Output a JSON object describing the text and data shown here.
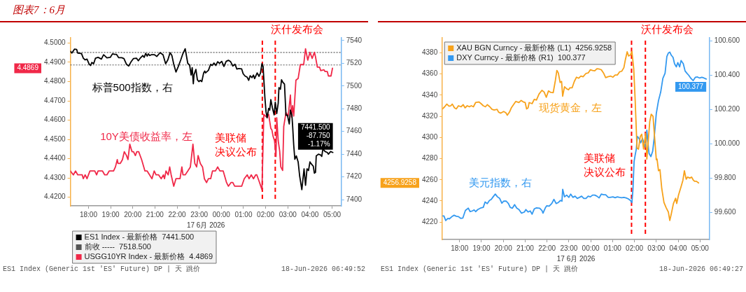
{
  "chart_data": [
    {
      "type": "line",
      "title": "图表7：6月",
      "xlabel": "17 6月 2026",
      "marker": "none",
      "legend": "bottom left",
      "xlim": [
        "2026-06-17T17:11",
        "2026-06-18T05:25"
      ],
      "xticks": [
        {
          "value": "2026-06-17T18:00",
          "label": "18:00"
        },
        {
          "value": "2026-06-17T19:00",
          "label": "19:00"
        },
        {
          "value": "2026-06-17T20:00",
          "label": "20:00"
        },
        {
          "value": "2026-06-17T21:00",
          "label": "21:00"
        },
        {
          "value": "2026-06-17T22:00",
          "label": "22:00"
        },
        {
          "value": "2026-06-17T23:00",
          "label": "23:00"
        },
        {
          "value": "2026-06-18T00:00",
          "label": "00:00"
        },
        {
          "value": "2026-06-18T01:00",
          "label": "01:00"
        },
        {
          "value": "2026-06-18T02:00",
          "label": "02:00"
        },
        {
          "value": "2026-06-18T03:00",
          "label": "03:00"
        },
        {
          "value": "2026-06-18T04:00",
          "label": "04:00"
        },
        {
          "value": "2026-06-18T05:00",
          "label": "05:00"
        }
      ],
      "ylim": [
        4.4155,
        4.5027
      ],
      "yticks": [
        {
          "value": 4.42,
          "label": "4.4200"
        },
        {
          "value": 4.43,
          "label": "4.4300"
        },
        {
          "value": 4.44,
          "label": "4.4400"
        },
        {
          "value": 4.45,
          "label": "4.4500"
        },
        {
          "value": 4.46,
          "label": "4.4600"
        },
        {
          "value": 4.47,
          "label": "4.4700"
        },
        {
          "value": 4.48,
          "label": "4.4800"
        },
        {
          "value": 4.49,
          "label": "4.4900"
        },
        {
          "value": 4.5,
          "label": "4.5000"
        }
      ],
      "y2lim": [
        7394.5,
        7542.4
      ],
      "y2ticks": [
        7400,
        7420,
        7440,
        7460,
        7480,
        7500,
        7520,
        7540
      ],
      "series": [
        {
          "name": "ES1 Index - 最新价格  7441.500",
          "color": "#000000",
          "axis": "y2",
          "x": [
            "2026-06-17T17:11",
            "2026-06-17T17:15",
            "2026-06-17T17:22",
            "2026-06-17T17:28",
            "2026-06-17T17:31",
            "2026-06-17T17:37",
            "2026-06-17T17:41",
            "2026-06-17T17:46",
            "2026-06-17T17:51",
            "2026-06-17T17:56",
            "2026-06-17T18:02",
            "2026-06-17T18:06",
            "2026-06-17T18:09",
            "2026-06-17T18:14",
            "2026-06-17T18:19",
            "2026-06-17T18:26",
            "2026-06-17T18:35",
            "2026-06-17T18:41",
            "2026-06-17T18:50",
            "2026-06-17T18:59",
            "2026-06-17T19:05",
            "2026-06-17T19:11",
            "2026-06-17T19:16",
            "2026-06-17T19:22",
            "2026-06-17T19:30",
            "2026-06-17T19:36",
            "2026-06-17T19:43",
            "2026-06-17T19:49",
            "2026-06-17T19:55",
            "2026-06-17T20:02",
            "2026-06-17T20:10",
            "2026-06-17T20:15",
            "2026-06-17T20:21",
            "2026-06-17T20:27",
            "2026-06-17T20:31",
            "2026-06-17T20:35",
            "2026-06-17T20:39",
            "2026-06-17T20:42",
            "2026-06-17T20:46",
            "2026-06-17T20:50",
            "2026-06-17T20:59",
            "2026-06-17T21:05",
            "2026-06-17T21:14",
            "2026-06-17T21:22",
            "2026-06-17T21:29",
            "2026-06-17T21:35",
            "2026-06-17T21:41",
            "2026-06-17T21:46",
            "2026-06-17T21:51",
            "2026-06-17T21:57",
            "2026-06-17T22:03",
            "2026-06-17T22:10",
            "2026-06-17T22:15",
            "2026-06-17T22:22",
            "2026-06-17T22:29",
            "2026-06-17T22:34",
            "2026-06-17T22:38",
            "2026-06-17T22:41",
            "2026-06-17T22:44",
            "2026-06-17T22:46",
            "2026-06-17T22:51",
            "2026-06-17T22:55",
            "2026-06-17T22:59",
            "2026-06-17T23:03",
            "2026-06-17T23:07",
            "2026-06-17T23:12",
            "2026-06-17T23:15",
            "2026-06-17T23:17",
            "2026-06-17T23:25",
            "2026-06-17T23:31",
            "2026-06-17T23:35",
            "2026-06-17T23:40",
            "2026-06-17T23:45",
            "2026-06-17T23:50",
            "2026-06-17T23:55",
            "2026-06-18T00:01",
            "2026-06-18T00:07",
            "2026-06-18T00:13",
            "2026-06-18T00:19",
            "2026-06-18T00:25",
            "2026-06-18T00:31",
            "2026-06-18T00:37",
            "2026-06-18T00:42",
            "2026-06-18T00:47",
            "2026-06-18T00:55",
            "2026-06-18T00:59",
            "2026-06-18T01:04",
            "2026-06-18T01:10",
            "2026-06-18T01:14",
            "2026-06-18T01:18",
            "2026-06-18T01:23",
            "2026-06-18T01:27",
            "2026-06-18T01:30",
            "2026-06-18T01:37",
            "2026-06-18T01:42",
            "2026-06-18T01:46",
            "2026-06-18T01:50",
            "2026-06-18T01:53",
            "2026-06-18T01:58",
            "2026-06-18T02:01",
            "2026-06-18T02:04",
            "2026-06-18T02:08",
            "2026-06-18T02:11",
            "2026-06-18T02:14",
            "2026-06-18T02:18",
            "2026-06-18T02:23",
            "2026-06-18T02:26",
            "2026-06-18T02:30",
            "2026-06-18T02:34",
            "2026-06-18T02:36",
            "2026-06-18T02:40",
            "2026-06-18T02:43",
            "2026-06-18T02:46",
            "2026-06-18T02:51",
            "2026-06-18T02:55",
            "2026-06-18T02:59",
            "2026-06-18T03:04",
            "2026-06-18T03:07",
            "2026-06-18T03:11",
            "2026-06-18T03:13",
            "2026-06-18T03:16",
            "2026-06-18T03:19",
            "2026-06-18T03:23",
            "2026-06-18T03:28",
            "2026-06-18T03:32",
            "2026-06-18T03:38",
            "2026-06-18T03:44",
            "2026-06-18T03:48",
            "2026-06-18T03:52",
            "2026-06-18T03:56",
            "2026-06-18T04:00",
            "2026-06-18T04:03",
            "2026-06-18T04:09",
            "2026-06-18T04:12",
            "2026-06-18T04:15",
            "2026-06-18T04:17",
            "2026-06-18T04:23",
            "2026-06-18T04:29",
            "2026-06-18T04:32",
            "2026-06-18T04:35",
            "2026-06-18T04:41",
            "2026-06-18T04:47",
            "2026-06-18T04:50",
            "2026-06-18T04:56",
            "2026-06-18T05:02"
          ],
          "values": [
            7530.6,
            7529.0,
            7532.4,
            7532.1,
            7529.0,
            7528.7,
            7528.6,
            7524.5,
            7523.0,
            7523.7,
            7519.1,
            7518.1,
            7520.7,
            7519.6,
            7524.5,
            7525.2,
            7523.7,
            7527.5,
            7524.8,
            7525.2,
            7528.3,
            7527.8,
            7527.8,
            7524.9,
            7524.9,
            7524.2,
            7519.1,
            7517.6,
            7521.1,
            7524.2,
            7524.5,
            7522.2,
            7524.8,
            7526.8,
            7525.2,
            7528.7,
            7526.3,
            7528.3,
            7526.8,
            7527.5,
            7527.5,
            7526.0,
            7529.3,
            7527.5,
            7519.6,
            7523.0,
            7529.3,
            7526.8,
            7519.1,
            7512.3,
            7516.9,
            7523.0,
            7527.8,
            7532.8,
            7519.9,
            7518.4,
            7509.6,
            7516.1,
            7502.0,
            7510.0,
            7514.6,
            7505.5,
            7503.9,
            7505.0,
            7503.9,
            7511.5,
            7513.1,
            7511.5,
            7513.8,
            7519.1,
            7518.1,
            7520.2,
            7518.1,
            7521.4,
            7519.9,
            7521.7,
            7517.2,
            7521.7,
            7522.6,
            7521.4,
            7517.6,
            7519.1,
            7514.9,
            7515.3,
            7515.0,
            7510.8,
            7508.8,
            7507.7,
            7505.0,
            7509.0,
            7507.4,
            7509.6,
            7506.5,
            7511.5,
            7508.5,
            7511.5,
            7519.6,
            7517.2,
            7489.5,
            7477.3,
            7472.0,
            7480.3,
            7478.8,
            7488.0,
            7481.1,
            7474.6,
            7485.7,
            7475.8,
            7484.9,
            7498.6,
            7497.1,
            7505.5,
            7503.5,
            7501.6,
            7474.3,
            7474.3,
            7466.6,
            7478.8,
            7474.3,
            7465.1,
            7448.0,
            7435.5,
            7438.5,
            7433.2,
            7421.0,
            7408.8,
            7427.1,
            7412.6,
            7427.1,
            7425.6,
            7433.2,
            7431.7,
            7429.4,
            7423.3,
            7424.0,
            7438.5,
            7440.0,
            7439.3,
            7438.0,
            7444.6,
            7442.3,
            7441.5,
            7440.0,
            7442.3,
            7441.5
          ],
          "value_labels": [
            null,
            null,
            null,
            null,
            null,
            null,
            null,
            null,
            null,
            null,
            null,
            null,
            null,
            null,
            null,
            null,
            null,
            null,
            null,
            null,
            null,
            null,
            null,
            null,
            null,
            null,
            null,
            null,
            null,
            null,
            null,
            null,
            null,
            null,
            null,
            null,
            null,
            null,
            null,
            null,
            null,
            null,
            null,
            null,
            null,
            null,
            null,
            null,
            null,
            null,
            null,
            null,
            null,
            null,
            null,
            null,
            null,
            null,
            null,
            null,
            null,
            null,
            null,
            null,
            null,
            null,
            null,
            null,
            null,
            null,
            null,
            null,
            null,
            null,
            null,
            null,
            null,
            null,
            null,
            null,
            null,
            null,
            null,
            null,
            null,
            null,
            null,
            null,
            null,
            null,
            null,
            null,
            null,
            null,
            null,
            null,
            null,
            null,
            null,
            null,
            null,
            null,
            null,
            null,
            null,
            null,
            null,
            null,
            null,
            null,
            null,
            null,
            null,
            null,
            null,
            null,
            null,
            null,
            null,
            null,
            null,
            null,
            null,
            null,
            null,
            null,
            null,
            null,
            null,
            null,
            null,
            null,
            null,
            null,
            null,
            null,
            null,
            null,
            null,
            null,
            null,
            null,
            null,
            null,
            "7441.500\n-87.750\n-1.17%"
          ]
        },
        {
          "name": "USGG10YR Index - 最新价格  4.4869",
          "color": "#f02848",
          "x": [
            "2026-06-17T17:11",
            "2026-06-17T17:19",
            "2026-06-17T17:25",
            "2026-06-17T17:31",
            "2026-06-17T17:43",
            "2026-06-17T17:46",
            "2026-06-17T17:51",
            "2026-06-17T17:56",
            "2026-06-17T18:04",
            "2026-06-17T18:17",
            "2026-06-17T18:22",
            "2026-06-17T18:26",
            "2026-06-17T18:38",
            "2026-06-17T18:44",
            "2026-06-17T18:50",
            "2026-06-17T18:56",
            "2026-06-17T19:08",
            "2026-06-17T19:13",
            "2026-06-17T19:18",
            "2026-06-17T19:20",
            "2026-06-17T19:26",
            "2026-06-17T19:32",
            "2026-06-17T19:37",
            "2026-06-17T19:43",
            "2026-06-17T19:47",
            "2026-06-17T19:52",
            "2026-06-17T19:58",
            "2026-06-17T20:02",
            "2026-06-17T20:07",
            "2026-06-17T20:11",
            "2026-06-17T20:16",
            "2026-06-17T20:24",
            "2026-06-17T20:33",
            "2026-06-17T20:39",
            "2026-06-17T20:52",
            "2026-06-17T20:58",
            "2026-06-17T21:03",
            "2026-06-17T21:10",
            "2026-06-17T21:17",
            "2026-06-17T21:23",
            "2026-06-17T21:26",
            "2026-06-17T21:30",
            "2026-06-17T21:36",
            "2026-06-17T21:40",
            "2026-06-17T21:44",
            "2026-06-17T21:51",
            "2026-06-17T21:57",
            "2026-06-17T22:08",
            "2026-06-17T22:13",
            "2026-06-17T22:16",
            "2026-06-17T22:22",
            "2026-06-17T22:29",
            "2026-06-17T22:36",
            "2026-06-17T22:43",
            "2026-06-17T22:48",
            "2026-06-17T22:53",
            "2026-06-17T22:57",
            "2026-06-17T23:03",
            "2026-06-17T23:09",
            "2026-06-17T23:14",
            "2026-06-17T23:20",
            "2026-06-17T23:25",
            "2026-06-17T23:31",
            "2026-06-17T23:36",
            "2026-06-17T23:44",
            "2026-06-17T23:50",
            "2026-06-17T23:56",
            "2026-06-18T00:05",
            "2026-06-18T00:14",
            "2026-06-18T00:19",
            "2026-06-18T00:26",
            "2026-06-18T00:31",
            "2026-06-18T00:36",
            "2026-06-18T00:55",
            "2026-06-18T01:02",
            "2026-06-18T01:10",
            "2026-06-18T01:15",
            "2026-06-18T01:21",
            "2026-06-18T01:27",
            "2026-06-18T01:33",
            "2026-06-18T01:36",
            "2026-06-18T01:42",
            "2026-06-18T01:50",
            "2026-06-18T01:55",
            "2026-06-18T02:02",
            "2026-06-18T02:08",
            "2026-06-18T02:14",
            "2026-06-18T02:17",
            "2026-06-18T02:20",
            "2026-06-18T02:24",
            "2026-06-18T02:28",
            "2026-06-18T02:30",
            "2026-06-18T02:34",
            "2026-06-18T02:38",
            "2026-06-18T02:41",
            "2026-06-18T02:46",
            "2026-06-18T02:49",
            "2026-06-18T02:55",
            "2026-06-18T03:01",
            "2026-06-18T03:07",
            "2026-06-18T03:10",
            "2026-06-18T03:13",
            "2026-06-18T03:16",
            "2026-06-18T03:22",
            "2026-06-18T03:28",
            "2026-06-18T03:34",
            "2026-06-18T03:43",
            "2026-06-18T03:48",
            "2026-06-18T03:54",
            "2026-06-18T04:00",
            "2026-06-18T04:06",
            "2026-06-18T04:12",
            "2026-06-18T04:15",
            "2026-06-18T04:20",
            "2026-06-18T04:26",
            "2026-06-18T04:29",
            "2026-06-18T04:38",
            "2026-06-18T04:41",
            "2026-06-18T04:47",
            "2026-06-18T04:50",
            "2026-06-18T04:57",
            "2026-06-18T05:01"
          ],
          "values": [
            4.4336,
            4.4316,
            4.4336,
            4.4316,
            4.4316,
            4.4296,
            4.4316,
            4.4296,
            4.4336,
            4.4336,
            4.4316,
            4.4336,
            4.4336,
            4.4316,
            4.4316,
            4.4336,
            4.4336,
            4.4357,
            4.4395,
            4.4375,
            4.4375,
            4.4395,
            4.4436,
            4.4416,
            4.4395,
            4.4475,
            4.4436,
            4.4436,
            4.4416,
            4.4436,
            4.4436,
            4.4395,
            4.4336,
            4.4336,
            4.4296,
            4.4336,
            4.4316,
            4.4316,
            4.4296,
            4.4316,
            4.4296,
            4.4336,
            4.4316,
            4.4357,
            4.4316,
            4.4257,
            4.4296,
            4.4296,
            4.4357,
            4.4316,
            4.4316,
            4.4336,
            4.4357,
            4.4475,
            4.4375,
            4.4357,
            4.4416,
            4.4375,
            4.4357,
            4.4296,
            4.4276,
            4.4296,
            4.4296,
            4.4336,
            4.4336,
            4.4357,
            4.4336,
            4.4336,
            4.4276,
            4.4257,
            4.4276,
            4.4276,
            4.4257,
            4.4257,
            4.4296,
            4.4316,
            4.4296,
            4.4316,
            4.4296,
            4.4316,
            4.4316,
            4.4284,
            4.4239,
            4.463,
            4.4616,
            4.463,
            4.4557,
            4.4548,
            4.4517,
            4.4493,
            4.4411,
            4.4612,
            4.4493,
            4.4439,
            4.4357,
            4.4339,
            4.4567,
            4.4639,
            4.4621,
            4.473,
            4.4616,
            4.4675,
            4.4621,
            4.4807,
            4.4816,
            4.4888,
            4.4888,
            4.497,
            4.4911,
            4.4952,
            4.492,
            4.4952,
            4.4929,
            4.4875,
            4.4875,
            4.4857,
            4.4861,
            4.4852,
            4.4852,
            4.4829,
            4.4829,
            4.4869
          ]
        }
      ],
      "ref_lines": [
        {
          "axis": "x",
          "value": "2026-06-18T01:51",
          "label": "美联储决议公布",
          "color": "#ff0000",
          "line_style": "dashed"
        },
        {
          "axis": "x",
          "value": "2026-06-18T02:26",
          "label": "沃什发布会",
          "color": "#ff0000",
          "line_style": "dashed"
        },
        {
          "axis": "y2",
          "value": 7518.5,
          "label": "前收 -----  7518.500",
          "color": "#555555",
          "line_style": "dotted"
        },
        {
          "axis": "y2",
          "value": 7529.5,
          "color": "#333333",
          "line_style": "dotted"
        }
      ],
      "annotations": [
        "标普500指数，右",
        "10Y美债收益率，左",
        "ES1 Index (Generic 1st 'ES' Future) DP | 天 跳价",
        "18-Jun-2026 06:49:52",
        "4.4869"
      ]
    },
    {
      "type": "line",
      "xlabel": "17 6月 2026",
      "marker": "none",
      "legend": "top left",
      "xlim": [
        "2026-06-17T17:13",
        "2026-06-18T05:26"
      ],
      "xticks": [
        {
          "value": "2026-06-17T18:00",
          "label": "18:00"
        },
        {
          "value": "2026-06-17T19:00",
          "label": "19:00"
        },
        {
          "value": "2026-06-17T20:00",
          "label": "20:00"
        },
        {
          "value": "2026-06-17T21:00",
          "label": "21:00"
        },
        {
          "value": "2026-06-17T22:00",
          "label": "22:00"
        },
        {
          "value": "2026-06-17T23:00",
          "label": "23:00"
        },
        {
          "value": "2026-06-18T00:00",
          "label": "00:00"
        },
        {
          "value": "2026-06-18T01:00",
          "label": "01:00"
        },
        {
          "value": "2026-06-18T02:00",
          "label": "02:00"
        },
        {
          "value": "2026-06-18T03:00",
          "label": "03:00"
        },
        {
          "value": "2026-06-18T04:00",
          "label": "04:00"
        },
        {
          "value": "2026-06-18T05:00",
          "label": "05:00"
        }
      ],
      "ylim": [
        4203.6,
        4394.2
      ],
      "yticks": [
        4220,
        4240,
        4260,
        4280,
        4300,
        4320,
        4340,
        4360,
        4380
      ],
      "y2lim": [
        99.444,
        100.617
      ],
      "y2ticks": [
        {
          "value": 99.6,
          "label": "99.600"
        },
        {
          "value": 99.8,
          "label": "99.800"
        },
        {
          "value": 100,
          "label": "100.000"
        },
        {
          "value": 100.2,
          "label": "100.200"
        },
        {
          "value": 100.4,
          "label": "100.400"
        },
        {
          "value": 100.6,
          "label": "100.600"
        }
      ],
      "series": [
        {
          "name": "XAU BGN Curncy - 最新价格 (L1)  4256.9258",
          "color": "#f7a21b",
          "x": [
            "2026-06-17T17:13",
            "2026-06-17T17:19",
            "2026-06-17T17:25",
            "2026-06-17T17:31",
            "2026-06-17T17:36",
            "2026-06-17T17:40",
            "2026-06-17T17:46",
            "2026-06-17T17:51",
            "2026-06-17T17:57",
            "2026-06-17T18:04",
            "2026-06-17T18:10",
            "2026-06-17T18:15",
            "2026-06-17T18:21",
            "2026-06-17T18:27",
            "2026-06-17T18:32",
            "2026-06-17T18:38",
            "2026-06-17T18:44",
            "2026-06-17T18:53",
            "2026-06-17T18:59",
            "2026-06-17T19:05",
            "2026-06-17T19:11",
            "2026-06-17T19:16",
            "2026-06-17T19:23",
            "2026-06-17T19:29",
            "2026-06-17T19:35",
            "2026-06-17T19:43",
            "2026-06-17T19:47",
            "2026-06-17T19:53",
            "2026-06-17T20:01",
            "2026-06-17T20:07",
            "2026-06-17T20:11",
            "2026-06-17T20:17",
            "2026-06-17T20:22",
            "2026-06-17T20:28",
            "2026-06-17T20:34",
            "2026-06-17T20:43",
            "2026-06-17T20:49",
            "2026-06-17T20:55",
            "2026-06-17T21:00",
            "2026-06-17T21:04",
            "2026-06-17T21:08",
            "2026-06-17T21:11",
            "2026-06-17T21:19",
            "2026-06-17T21:25",
            "2026-06-17T21:31",
            "2026-06-17T21:38",
            "2026-06-17T21:46",
            "2026-06-17T21:52",
            "2026-06-17T21:58",
            "2026-06-17T22:04",
            "2026-06-17T22:10",
            "2026-06-17T22:17",
            "2026-06-17T22:23",
            "2026-06-17T22:27",
            "2026-06-17T22:31",
            "2026-06-17T22:36",
            "2026-06-17T22:40",
            "2026-06-17T22:43",
            "2026-06-17T22:48",
            "2026-06-17T22:54",
            "2026-06-17T22:59",
            "2026-06-17T23:03",
            "2026-06-17T23:09",
            "2026-06-17T23:15",
            "2026-06-17T23:21",
            "2026-06-17T23:27",
            "2026-06-17T23:33",
            "2026-06-17T23:39",
            "2026-06-17T23:47",
            "2026-06-17T23:53",
            "2026-06-17T23:59",
            "2026-06-18T00:05",
            "2026-06-18T00:11",
            "2026-06-18T00:17",
            "2026-06-18T00:24",
            "2026-06-18T00:29",
            "2026-06-18T00:35",
            "2026-06-18T00:41",
            "2026-06-18T00:47",
            "2026-06-18T00:55",
            "2026-06-18T01:01",
            "2026-06-18T01:07",
            "2026-06-18T01:13",
            "2026-06-18T01:19",
            "2026-06-18T01:25",
            "2026-06-18T01:31",
            "2026-06-18T01:35",
            "2026-06-18T01:40",
            "2026-06-18T01:44",
            "2026-06-18T01:49",
            "2026-06-18T01:53",
            "2026-06-18T01:58",
            "2026-06-18T02:02",
            "2026-06-18T02:07",
            "2026-06-18T02:11",
            "2026-06-18T02:16",
            "2026-06-18T02:20",
            "2026-06-18T02:25",
            "2026-06-18T02:28",
            "2026-06-18T02:31",
            "2026-06-18T02:34",
            "2026-06-18T02:42",
            "2026-06-18T02:46",
            "2026-06-18T02:51",
            "2026-06-18T02:56",
            "2026-06-18T03:00",
            "2026-06-18T03:02",
            "2026-06-18T03:06",
            "2026-06-18T03:10",
            "2026-06-18T03:15",
            "2026-06-18T03:21",
            "2026-06-18T03:27",
            "2026-06-18T03:33",
            "2026-06-18T03:37",
            "2026-06-18T03:41",
            "2026-06-18T03:47",
            "2026-06-18T03:53",
            "2026-06-18T03:56",
            "2026-06-18T04:01",
            "2026-06-18T04:08",
            "2026-06-18T04:13",
            "2026-06-18T04:17",
            "2026-06-18T04:22",
            "2026-06-18T04:26",
            "2026-06-18T04:32",
            "2026-06-18T04:37",
            "2026-06-18T04:41",
            "2026-06-18T04:45",
            "2026-06-18T04:50",
            "2026-06-18T04:56"
          ],
          "values": [
            4327,
            4329,
            4331.6,
            4329.6,
            4330,
            4331.6,
            4328,
            4327,
            4330,
            4329,
            4331,
            4328,
            4330,
            4329,
            4330,
            4329,
            4333,
            4333.6,
            4332,
            4330,
            4329,
            4331,
            4329,
            4326.6,
            4326,
            4326.6,
            4324,
            4323,
            4324.6,
            4323.4,
            4321,
            4324,
            4328,
            4331,
            4334,
            4333,
            4335,
            4333.6,
            4333,
            4327,
            4328,
            4333,
            4332,
            4336,
            4335.4,
            4341,
            4344.6,
            4343,
            4338,
            4344,
            4342.6,
            4342.4,
            4354,
            4363.4,
            4361,
            4352,
            4353,
            4339,
            4348,
            4346,
            4345,
            4347,
            4347,
            4353,
            4357,
            4356,
            4358,
            4357.4,
            4360.6,
            4361,
            4364,
            4363.4,
            4363,
            4365,
            4364.6,
            4364,
            4361,
            4356.6,
            4357.4,
            4358,
            4357,
            4359,
            4359,
            4362,
            4362.6,
            4366,
            4373.4,
            4381,
            4377,
            4378,
            4381.4,
            4365,
            4335,
            4290,
            4289,
            4301,
            4303,
            4289,
            4297,
            4304,
            4279.6,
            4315,
            4322,
            4320,
            4297,
            4279,
            4279.6,
            4268.6,
            4269.6,
            4251.6,
            4238.6,
            4233.6,
            4229.6,
            4221.6,
            4227.6,
            4237.6,
            4242.6,
            4237.6,
            4245.6,
            4253.6,
            4259.6,
            4268.6,
            4260.6,
            4262.6,
            4261.6,
            4262.6,
            4260,
            4258.6,
            4258.6,
            4257
          ]
        },
        {
          "name": "DXY Curncy - 最新价格 (R1)  100.377",
          "color": "#3399f0",
          "axis": "y2",
          "x": [
            "2026-06-17T17:13",
            "2026-06-17T17:17",
            "2026-06-17T17:22",
            "2026-06-17T17:28",
            "2026-06-17T17:32",
            "2026-06-17T17:39",
            "2026-06-17T17:45",
            "2026-06-17T17:51",
            "2026-06-17T17:57",
            "2026-06-17T18:03",
            "2026-06-17T18:09",
            "2026-06-17T18:16",
            "2026-06-17T18:24",
            "2026-06-17T18:29",
            "2026-06-17T18:35",
            "2026-06-17T18:40",
            "2026-06-17T18:44",
            "2026-06-17T18:50",
            "2026-06-17T18:59",
            "2026-06-17T19:05",
            "2026-06-17T19:10",
            "2026-06-17T19:16",
            "2026-06-17T19:22",
            "2026-06-17T19:27",
            "2026-06-17T19:32",
            "2026-06-17T19:38",
            "2026-06-17T19:44",
            "2026-06-17T19:50",
            "2026-06-17T19:56",
            "2026-06-17T20:01",
            "2026-06-17T20:08",
            "2026-06-17T20:14",
            "2026-06-17T20:19",
            "2026-06-17T20:25",
            "2026-06-17T20:31",
            "2026-06-17T20:37",
            "2026-06-17T20:43",
            "2026-06-17T20:50",
            "2026-06-17T20:58",
            "2026-06-17T21:02",
            "2026-06-17T21:08",
            "2026-06-17T21:14",
            "2026-06-17T21:19",
            "2026-06-17T21:25",
            "2026-06-17T21:31",
            "2026-06-17T21:40",
            "2026-06-17T21:46",
            "2026-06-17T21:49",
            "2026-06-17T21:55",
            "2026-06-17T21:59",
            "2026-06-17T22:06",
            "2026-06-17T22:13",
            "2026-06-17T22:19",
            "2026-06-17T22:25",
            "2026-06-17T22:31",
            "2026-06-17T22:37",
            "2026-06-17T22:41",
            "2026-06-17T22:43",
            "2026-06-17T22:48",
            "2026-06-17T22:54",
            "2026-06-17T23:00",
            "2026-06-17T23:05",
            "2026-06-17T23:11",
            "2026-06-17T23:17",
            "2026-06-17T23:23",
            "2026-06-17T23:29",
            "2026-06-17T23:35",
            "2026-06-17T23:41",
            "2026-06-17T23:47",
            "2026-06-17T23:53",
            "2026-06-17T23:59",
            "2026-06-18T00:05",
            "2026-06-18T00:11",
            "2026-06-18T00:17",
            "2026-06-18T00:23",
            "2026-06-18T00:29",
            "2026-06-18T00:35",
            "2026-06-18T00:41",
            "2026-06-18T00:48",
            "2026-06-18T00:53",
            "2026-06-18T01:01",
            "2026-06-18T01:07",
            "2026-06-18T01:13",
            "2026-06-18T01:19",
            "2026-06-18T01:25",
            "2026-06-18T01:31",
            "2026-06-18T01:37",
            "2026-06-18T01:43",
            "2026-06-18T01:49",
            "2026-06-18T01:53",
            "2026-06-18T01:56",
            "2026-06-18T01:59",
            "2026-06-18T02:02",
            "2026-06-18T02:05",
            "2026-06-18T02:08",
            "2026-06-18T02:13",
            "2026-06-18T02:17",
            "2026-06-18T02:22",
            "2026-06-18T02:26",
            "2026-06-18T02:31",
            "2026-06-18T02:34",
            "2026-06-18T02:37",
            "2026-06-18T02:40",
            "2026-06-18T02:45",
            "2026-06-18T02:50",
            "2026-06-18T02:54",
            "2026-06-18T03:00",
            "2026-06-18T03:06",
            "2026-06-18T03:12",
            "2026-06-18T03:18",
            "2026-06-18T03:24",
            "2026-06-18T03:29",
            "2026-06-18T03:33",
            "2026-06-18T03:37",
            "2026-06-18T03:41",
            "2026-06-18T03:46",
            "2026-06-18T03:50",
            "2026-06-18T03:55",
            "2026-06-18T03:59",
            "2026-06-18T04:04",
            "2026-06-18T04:08",
            "2026-06-18T04:14",
            "2026-06-18T04:19",
            "2026-06-18T04:24",
            "2026-06-18T04:29",
            "2026-06-18T04:35",
            "2026-06-18T04:41",
            "2026-06-18T04:47",
            "2026-06-18T04:53",
            "2026-06-18T04:59",
            "2026-06-18T05:05",
            "2026-06-18T05:11",
            "2026-06-18T05:17"
          ],
          "values": [
            99.581,
            99.581,
            99.554,
            99.567,
            99.564,
            99.577,
            99.585,
            99.579,
            99.577,
            99.567,
            99.569,
            99.613,
            99.626,
            99.606,
            99.61,
            99.616,
            99.606,
            99.618,
            99.628,
            99.631,
            99.662,
            99.653,
            99.671,
            99.677,
            99.692,
            99.708,
            99.692,
            99.683,
            99.655,
            99.667,
            99.667,
            99.653,
            99.631,
            99.626,
            99.647,
            99.626,
            99.618,
            99.597,
            99.604,
            99.618,
            99.604,
            99.61,
            99.591,
            99.622,
            99.628,
            99.626,
            99.613,
            99.597,
            99.626,
            99.64,
            99.638,
            99.653,
            99.677,
            99.653,
            99.659,
            99.671,
            99.667,
            99.736,
            99.692,
            99.702,
            99.689,
            99.708,
            99.689,
            99.696,
            99.683,
            99.689,
            99.696,
            99.683,
            99.683,
            99.696,
            99.692,
            99.702,
            99.702,
            99.696,
            99.686,
            99.708,
            99.704,
            99.704,
            99.689,
            99.689,
            99.692,
            99.687,
            99.692,
            99.689,
            99.687,
            99.689,
            99.686,
            99.68,
            99.671,
            99.659,
            99.739,
            99.898,
            99.935,
            99.969,
            100.043,
            100.031,
            100.006,
            100.031,
            100.006,
            99.982,
            100.08,
            100.006,
            99.945,
            99.926,
            99.957,
            100.031,
            100.178,
            100.252,
            100.301,
            100.381,
            100.411,
            100.509,
            100.528,
            100.534,
            100.516,
            100.503,
            100.466,
            100.448,
            100.473,
            100.448,
            100.485,
            100.466,
            100.424,
            100.411,
            100.399,
            100.381,
            100.368,
            100.387,
            100.389,
            100.383,
            100.387,
            100.383,
            100.377
          ],
          "value_labels": [
            null,
            null,
            null,
            null,
            null,
            null,
            null,
            null,
            null,
            null,
            null,
            null,
            null,
            null,
            null,
            null,
            null,
            null,
            null,
            null,
            null,
            null,
            null,
            null,
            null,
            null,
            null,
            null,
            null,
            null,
            null,
            null,
            null,
            null,
            null,
            null,
            null,
            null,
            null,
            null,
            null,
            null,
            null,
            null,
            null,
            null,
            null,
            null,
            null,
            null,
            null,
            null,
            null,
            null,
            null,
            null,
            null,
            null,
            null,
            null,
            null,
            null,
            null,
            null,
            null,
            null,
            null,
            null,
            null,
            null,
            null,
            null,
            null,
            null,
            null,
            null,
            null,
            null,
            null,
            null,
            null,
            null,
            null,
            null,
            null,
            null,
            null,
            null,
            null,
            null,
            null,
            null,
            null,
            null,
            null,
            null,
            null,
            null,
            null,
            null,
            null,
            null,
            null,
            null,
            null,
            null,
            null,
            null,
            null,
            null,
            null,
            null,
            null,
            null,
            null,
            null,
            null,
            null,
            null,
            null,
            null,
            null,
            null,
            null,
            null,
            null,
            null,
            null,
            null,
            null,
            null,
            null,
            "100.377"
          ]
        }
      ],
      "ref_lines": [
        {
          "axis": "x",
          "value": "2026-06-18T01:52",
          "label": "美联储决议公布",
          "color": "#ff0000",
          "line_style": "dashed"
        },
        {
          "axis": "x",
          "value": "2026-06-18T02:30",
          "label": "沃什发布会",
          "color": "#ff0000",
          "line_style": "dashed"
        }
      ],
      "annotations": [
        "现货黄金，左",
        "美元指数，右",
        "ES1 Index (Generic 1st 'ES' Future) DP | 天 跳价",
        "18-Jun-2026 06:49:27",
        "4256.9258"
      ]
    }
  ]
}
